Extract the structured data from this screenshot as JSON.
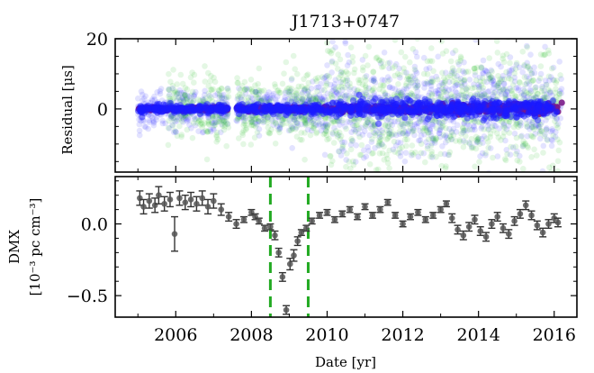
{
  "chart_data": [
    {
      "type": "scatter",
      "title": "J1713+0747",
      "ylabel": "Residual [μs]",
      "xlim": [
        2004.4,
        2016.6
      ],
      "ylim": [
        -18,
        20
      ],
      "yticks": [
        0,
        20
      ],
      "ytick_labels": [
        "0",
        "20"
      ],
      "grid": false,
      "series": [
        {
          "color": "#1a1aff",
          "alpha": 0.12,
          "values_us": [
            {
              "x": 2006.0,
              "y": 0
            },
            {
              "x": 2010.2,
              "y": 0
            },
            {
              "x": 2016.0,
              "y": 0
            }
          ],
          "y_spread_us": 12
        },
        {
          "color": "#22bb22",
          "alpha": 0.12,
          "values_us": [
            {
              "x": 2008.5,
              "y": 0
            },
            {
              "x": 2011.0,
              "y": 0
            },
            {
              "x": 2016.0,
              "y": 0
            }
          ],
          "y_spread_us": 15
        },
        {
          "color": "#7a1a8a",
          "alpha": 0.9,
          "values_us": [
            {
              "x": 2005.0,
              "y": 0
            },
            {
              "x": 2016.0,
              "y": 0
            }
          ],
          "y_spread_us": 0.8
        }
      ]
    },
    {
      "type": "scatter",
      "ylabel": "DMX",
      "ylabel2": "[10⁻³ pc cm⁻³]",
      "xlabel": "Date [yr]",
      "xlim": [
        2004.4,
        2016.6
      ],
      "ylim": [
        -0.65,
        0.33
      ],
      "yticks": [
        -0.5,
        0.0
      ],
      "ytick_labels": [
        "−0.5",
        "0.0"
      ],
      "xticks": [
        2006,
        2008,
        2010,
        2012,
        2014,
        2016
      ],
      "xtick_labels": [
        "2006",
        "2008",
        "2010",
        "2012",
        "2014",
        "2016"
      ],
      "vlines": [
        2008.5,
        2009.5
      ],
      "vline_color": "#22aa22",
      "points": [
        {
          "x": 2005.05,
          "y": 0.18,
          "err": 0.05
        },
        {
          "x": 2005.15,
          "y": 0.12,
          "err": 0.05
        },
        {
          "x": 2005.3,
          "y": 0.16,
          "err": 0.05
        },
        {
          "x": 2005.45,
          "y": 0.13,
          "err": 0.05
        },
        {
          "x": 2005.55,
          "y": 0.2,
          "err": 0.06
        },
        {
          "x": 2005.7,
          "y": 0.14,
          "err": 0.05
        },
        {
          "x": 2005.85,
          "y": 0.17,
          "err": 0.05
        },
        {
          "x": 2005.97,
          "y": -0.07,
          "err": 0.12
        },
        {
          "x": 2006.1,
          "y": 0.18,
          "err": 0.05
        },
        {
          "x": 2006.25,
          "y": 0.15,
          "err": 0.05
        },
        {
          "x": 2006.4,
          "y": 0.17,
          "err": 0.05
        },
        {
          "x": 2006.55,
          "y": 0.14,
          "err": 0.05
        },
        {
          "x": 2006.7,
          "y": 0.18,
          "err": 0.05
        },
        {
          "x": 2006.85,
          "y": 0.12,
          "err": 0.05
        },
        {
          "x": 2007.0,
          "y": 0.16,
          "err": 0.05
        },
        {
          "x": 2007.2,
          "y": 0.1,
          "err": 0.04
        },
        {
          "x": 2007.4,
          "y": 0.05,
          "err": 0.03
        },
        {
          "x": 2007.6,
          "y": 0.0,
          "err": 0.03
        },
        {
          "x": 2007.8,
          "y": 0.03,
          "err": 0.02
        },
        {
          "x": 2008.0,
          "y": 0.08,
          "err": 0.02
        },
        {
          "x": 2008.1,
          "y": 0.05,
          "err": 0.02
        },
        {
          "x": 2008.2,
          "y": 0.02,
          "err": 0.02
        },
        {
          "x": 2008.35,
          "y": -0.03,
          "err": 0.02
        },
        {
          "x": 2008.5,
          "y": -0.02,
          "err": 0.02
        },
        {
          "x": 2008.62,
          "y": -0.08,
          "err": 0.03
        },
        {
          "x": 2008.72,
          "y": -0.2,
          "err": 0.03
        },
        {
          "x": 2008.82,
          "y": -0.37,
          "err": 0.03
        },
        {
          "x": 2008.92,
          "y": -0.6,
          "err": 0.03
        },
        {
          "x": 2009.02,
          "y": -0.28,
          "err": 0.04
        },
        {
          "x": 2009.12,
          "y": -0.22,
          "err": 0.04
        },
        {
          "x": 2009.22,
          "y": -0.12,
          "err": 0.03
        },
        {
          "x": 2009.32,
          "y": -0.06,
          "err": 0.02
        },
        {
          "x": 2009.45,
          "y": -0.03,
          "err": 0.02
        },
        {
          "x": 2009.6,
          "y": 0.02,
          "err": 0.02
        },
        {
          "x": 2009.8,
          "y": 0.06,
          "err": 0.02
        },
        {
          "x": 2010.0,
          "y": 0.08,
          "err": 0.02
        },
        {
          "x": 2010.2,
          "y": 0.03,
          "err": 0.02
        },
        {
          "x": 2010.4,
          "y": 0.07,
          "err": 0.02
        },
        {
          "x": 2010.6,
          "y": 0.1,
          "err": 0.02
        },
        {
          "x": 2010.8,
          "y": 0.05,
          "err": 0.02
        },
        {
          "x": 2011.0,
          "y": 0.12,
          "err": 0.02
        },
        {
          "x": 2011.2,
          "y": 0.06,
          "err": 0.02
        },
        {
          "x": 2011.4,
          "y": 0.1,
          "err": 0.02
        },
        {
          "x": 2011.6,
          "y": 0.15,
          "err": 0.02
        },
        {
          "x": 2011.8,
          "y": 0.06,
          "err": 0.02
        },
        {
          "x": 2012.0,
          "y": 0.0,
          "err": 0.02
        },
        {
          "x": 2012.2,
          "y": 0.05,
          "err": 0.02
        },
        {
          "x": 2012.4,
          "y": 0.08,
          "err": 0.02
        },
        {
          "x": 2012.6,
          "y": 0.03,
          "err": 0.02
        },
        {
          "x": 2012.8,
          "y": 0.06,
          "err": 0.02
        },
        {
          "x": 2013.0,
          "y": 0.1,
          "err": 0.02
        },
        {
          "x": 2013.15,
          "y": 0.14,
          "err": 0.02
        },
        {
          "x": 2013.3,
          "y": 0.04,
          "err": 0.03
        },
        {
          "x": 2013.45,
          "y": -0.04,
          "err": 0.03
        },
        {
          "x": 2013.6,
          "y": -0.08,
          "err": 0.03
        },
        {
          "x": 2013.75,
          "y": -0.02,
          "err": 0.03
        },
        {
          "x": 2013.9,
          "y": 0.03,
          "err": 0.03
        },
        {
          "x": 2014.05,
          "y": -0.05,
          "err": 0.03
        },
        {
          "x": 2014.2,
          "y": -0.09,
          "err": 0.03
        },
        {
          "x": 2014.35,
          "y": 0.0,
          "err": 0.03
        },
        {
          "x": 2014.5,
          "y": 0.05,
          "err": 0.03
        },
        {
          "x": 2014.65,
          "y": -0.03,
          "err": 0.03
        },
        {
          "x": 2014.8,
          "y": -0.07,
          "err": 0.03
        },
        {
          "x": 2014.95,
          "y": 0.02,
          "err": 0.03
        },
        {
          "x": 2015.1,
          "y": 0.07,
          "err": 0.03
        },
        {
          "x": 2015.25,
          "y": 0.13,
          "err": 0.03
        },
        {
          "x": 2015.4,
          "y": 0.06,
          "err": 0.03
        },
        {
          "x": 2015.55,
          "y": -0.01,
          "err": 0.03
        },
        {
          "x": 2015.7,
          "y": -0.06,
          "err": 0.03
        },
        {
          "x": 2015.85,
          "y": 0.0,
          "err": 0.03
        },
        {
          "x": 2016.0,
          "y": 0.04,
          "err": 0.03
        },
        {
          "x": 2016.1,
          "y": 0.01,
          "err": 0.03
        }
      ]
    }
  ]
}
